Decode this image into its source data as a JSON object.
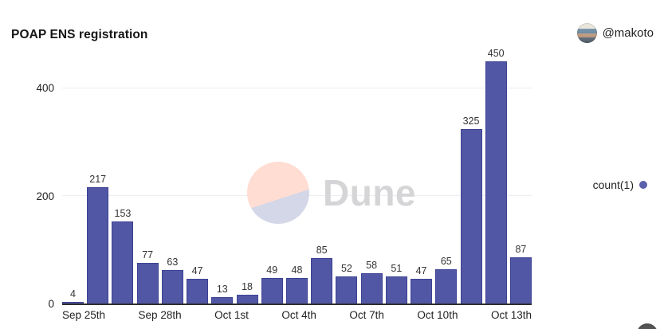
{
  "header": {
    "title": "POAP ENS registration",
    "author": {
      "handle": "@makoto"
    }
  },
  "legend": {
    "label": "count(1)"
  },
  "watermark": {
    "brand": "Dune"
  },
  "colors": {
    "bar": "#5157a4",
    "bar_border": "#3d4294",
    "legend_dot": "#5a60aa",
    "watermark_pink": "#ffddd3",
    "watermark_lavender": "#d4d7e7"
  },
  "chart_data": {
    "type": "bar",
    "title": "POAP ENS registration",
    "series_name": "count(1)",
    "values": [
      4,
      217,
      153,
      77,
      63,
      47,
      13,
      18,
      49,
      48,
      85,
      52,
      58,
      51,
      47,
      65,
      325,
      450,
      87
    ],
    "x_ticks": [
      {
        "index": 0,
        "label": "Sep 25th"
      },
      {
        "index": 3,
        "label": "Sep 28th"
      },
      {
        "index": 6,
        "label": "Oct 1st"
      },
      {
        "index": 9,
        "label": "Oct 4th"
      },
      {
        "index": 12,
        "label": "Oct 7th"
      },
      {
        "index": 15,
        "label": "Oct 10th"
      },
      {
        "index": 18,
        "label": "Oct 13th"
      }
    ],
    "y_ticks": [
      0,
      200,
      400
    ],
    "ylim": [
      0,
      485
    ],
    "grid": "horizontal",
    "legend_position": "right",
    "data_labels": true
  }
}
